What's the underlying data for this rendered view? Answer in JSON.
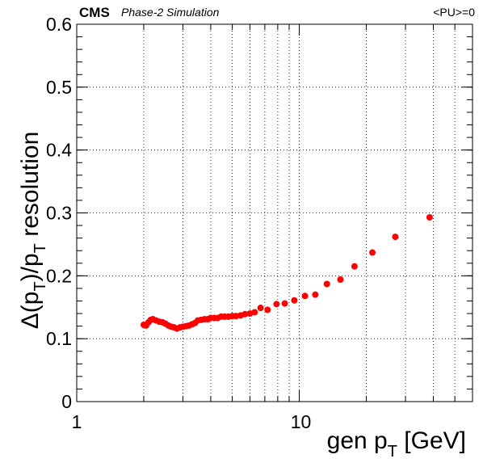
{
  "header": {
    "experiment": "CMS",
    "status": "Phase-2 Simulation",
    "pileup": "<PU>=0"
  },
  "chart_data": {
    "type": "scatter",
    "xscale": "log",
    "xlim": [
      1,
      60
    ],
    "ylim": [
      0,
      0.6
    ],
    "grid": true,
    "xlabel": {
      "main": "gen p",
      "sub": "T",
      "suffix": " [GeV]"
    },
    "ylabel": {
      "pre": "Δ(p",
      "sub1": "T",
      "mid": ")/p",
      "sub2": "T",
      "post": " resolution"
    },
    "xticks": [
      {
        "base": "1",
        "exp": ""
      },
      {
        "base": "10",
        "exp": ""
      }
    ],
    "yticks": [
      "0",
      "0.1",
      "0.2",
      "0.3",
      "0.4",
      "0.5",
      "0.6"
    ],
    "color": "#ff0000",
    "series": [
      {
        "x": [
          2.0,
          2.05,
          2.1,
          2.15,
          2.2,
          2.27,
          2.35,
          2.43,
          2.5,
          2.58,
          2.66,
          2.74,
          2.82,
          2.91,
          3.0,
          3.1,
          3.2,
          3.3,
          3.4,
          3.5,
          3.62,
          3.75,
          3.88,
          4.0,
          4.15,
          4.3,
          4.45,
          4.62,
          4.8,
          5.0,
          5.2,
          5.45,
          5.7,
          6.0,
          6.3,
          6.7,
          7.2,
          7.9,
          8.6,
          9.5,
          10.6,
          11.8,
          13.3,
          15.3,
          17.7,
          21.3,
          27.0,
          38.5
        ],
        "y": [
          0.122,
          0.121,
          0.126,
          0.13,
          0.131,
          0.129,
          0.127,
          0.126,
          0.124,
          0.121,
          0.119,
          0.118,
          0.116,
          0.118,
          0.119,
          0.12,
          0.121,
          0.123,
          0.125,
          0.129,
          0.13,
          0.131,
          0.131,
          0.133,
          0.133,
          0.133,
          0.135,
          0.135,
          0.135,
          0.136,
          0.136,
          0.137,
          0.139,
          0.14,
          0.142,
          0.149,
          0.146,
          0.155,
          0.156,
          0.161,
          0.168,
          0.17,
          0.187,
          0.194,
          0.215,
          0.237,
          0.262,
          0.293
        ]
      }
    ]
  }
}
